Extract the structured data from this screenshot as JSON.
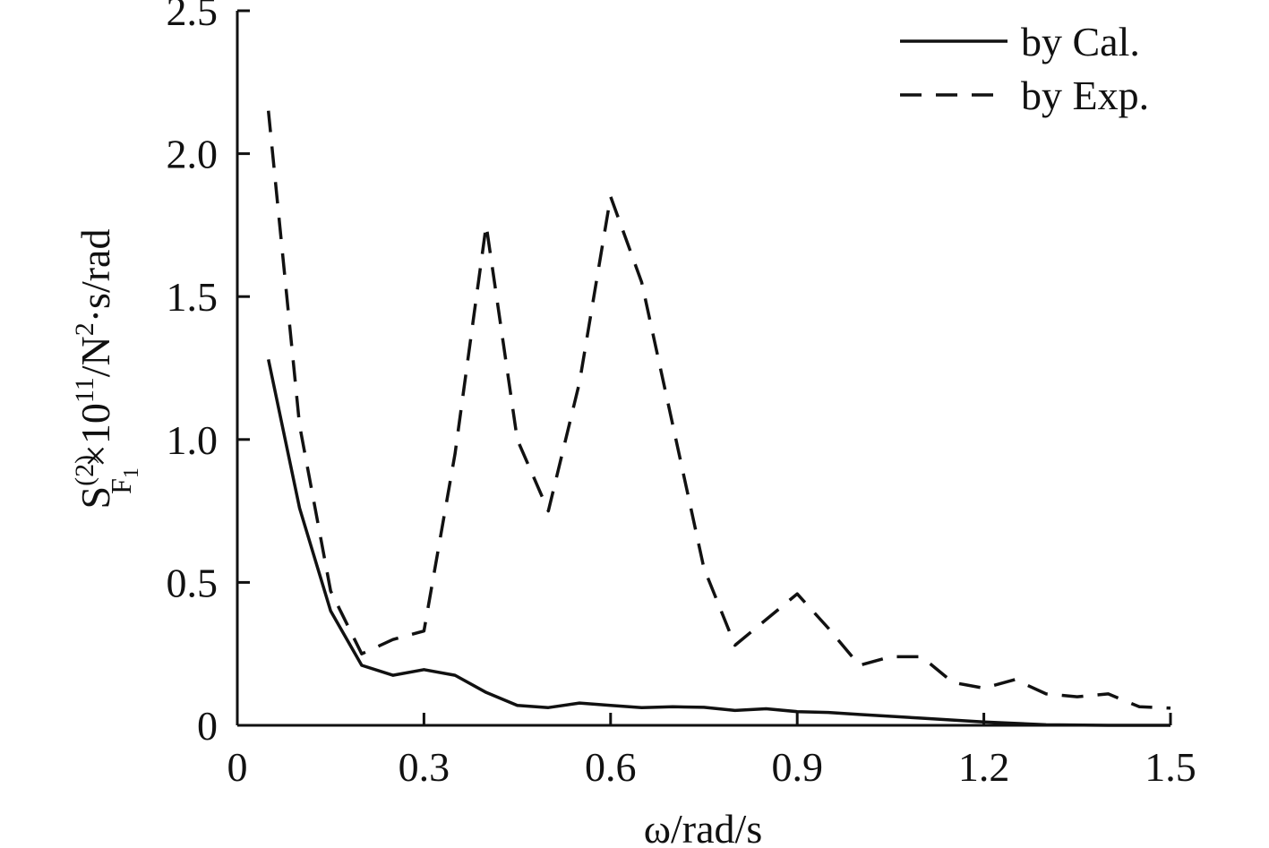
{
  "chart_data": {
    "type": "line",
    "xlabel": "ω/rad/s",
    "ylabel": {
      "base": "S",
      "superscript": "(2)",
      "subscript": "F",
      "subsubscript": "1",
      "rest": "×10",
      "exp": "11",
      "unit_a": "/N",
      "unit_exp": "2",
      "unit_b": "·s/rad"
    },
    "xlim": [
      0,
      1.5
    ],
    "ylim": [
      0,
      2.5
    ],
    "x_ticks": [
      0,
      0.3,
      0.6,
      0.9,
      1.2,
      1.5
    ],
    "x_tick_labels": [
      "0",
      "0.3",
      "0.6",
      "0.9",
      "1.2",
      "1.5"
    ],
    "y_ticks": [
      0,
      0.5,
      1.0,
      1.5,
      2.0,
      2.5
    ],
    "y_tick_labels": [
      "0",
      "0.5",
      "1.0",
      "1.5",
      "2.0",
      "2.5"
    ],
    "grid": false,
    "legend_position": "top-right",
    "series": [
      {
        "name": "by Cal.",
        "style": "solid",
        "color": "#111111",
        "points": [
          [
            0.05,
            1.28
          ],
          [
            0.1,
            0.76
          ],
          [
            0.15,
            0.4
          ],
          [
            0.2,
            0.21
          ],
          [
            0.25,
            0.175
          ],
          [
            0.3,
            0.195
          ],
          [
            0.35,
            0.175
          ],
          [
            0.4,
            0.115
          ],
          [
            0.45,
            0.07
          ],
          [
            0.5,
            0.062
          ],
          [
            0.55,
            0.078
          ],
          [
            0.6,
            0.07
          ],
          [
            0.65,
            0.062
          ],
          [
            0.7,
            0.065
          ],
          [
            0.75,
            0.063
          ],
          [
            0.8,
            0.052
          ],
          [
            0.85,
            0.058
          ],
          [
            0.9,
            0.048
          ],
          [
            0.95,
            0.045
          ],
          [
            1.0,
            0.038
          ],
          [
            1.1,
            0.025
          ],
          [
            1.2,
            0.012
          ],
          [
            1.3,
            0.002
          ],
          [
            1.4,
            0.0
          ],
          [
            1.5,
            0.0
          ]
        ]
      },
      {
        "name": "by Exp.",
        "style": "dashed",
        "color": "#111111",
        "points": [
          [
            0.05,
            2.15
          ],
          [
            0.1,
            1.05
          ],
          [
            0.15,
            0.47
          ],
          [
            0.2,
            0.25
          ],
          [
            0.25,
            0.3
          ],
          [
            0.3,
            0.33
          ],
          [
            0.35,
            0.95
          ],
          [
            0.4,
            1.75
          ],
          [
            0.45,
            1.0
          ],
          [
            0.5,
            0.75
          ],
          [
            0.55,
            1.2
          ],
          [
            0.6,
            1.85
          ],
          [
            0.65,
            1.55
          ],
          [
            0.7,
            1.05
          ],
          [
            0.75,
            0.55
          ],
          [
            0.8,
            0.28
          ],
          [
            0.85,
            0.37
          ],
          [
            0.9,
            0.46
          ],
          [
            0.95,
            0.34
          ],
          [
            1.0,
            0.21
          ],
          [
            1.05,
            0.24
          ],
          [
            1.1,
            0.24
          ],
          [
            1.15,
            0.15
          ],
          [
            1.2,
            0.13
          ],
          [
            1.25,
            0.16
          ],
          [
            1.3,
            0.11
          ],
          [
            1.35,
            0.1
          ],
          [
            1.4,
            0.11
          ],
          [
            1.45,
            0.065
          ],
          [
            1.5,
            0.06
          ]
        ]
      }
    ]
  }
}
